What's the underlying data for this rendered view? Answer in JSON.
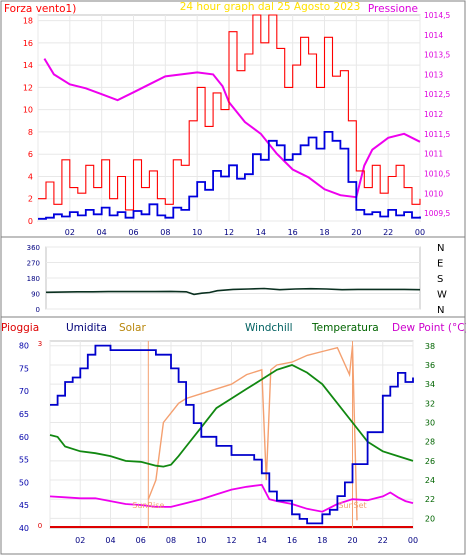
{
  "chart_data": [
    {
      "type": "line",
      "title": "24 hour graph dal   25 Agosto 2023",
      "ylabel_left": "Forza vento1)",
      "ylabel_right": "Pressione",
      "x_ticks": [
        "02",
        "04",
        "06",
        "08",
        "10",
        "12",
        "14",
        "16",
        "18",
        "20",
        "22",
        "00"
      ],
      "y_ticks_left": [
        "0",
        "2",
        "4",
        "6",
        "8",
        "10",
        "12",
        "14",
        "16",
        "18"
      ],
      "y_ticks_right": [
        "1009,5",
        "1010",
        "1010,5",
        "1011",
        "1011,5",
        "1012",
        "1012,5",
        "1013",
        "1013,5",
        "1014",
        "1014,5"
      ],
      "ylim_left": [
        0,
        18.5
      ],
      "ylim_right": [
        1009.3,
        1014.5
      ],
      "grid": true,
      "colors": {
        "gust": "#ff0000",
        "wind": "#0000dd",
        "pressure": "#ee00ee"
      },
      "series": [
        {
          "key": "pressure",
          "axis": "right",
          "x": [
            0.4,
            1,
            2,
            3,
            4,
            5,
            6,
            7,
            8,
            9,
            10,
            11,
            11.6,
            12,
            13,
            14,
            15,
            16,
            17,
            18,
            19,
            20,
            20.5,
            21,
            22,
            23,
            24
          ],
          "values": [
            1013.4,
            1013.0,
            1012.75,
            1012.65,
            1012.5,
            1012.35,
            1012.55,
            1012.75,
            1012.95,
            1013.0,
            1013.05,
            1013.0,
            1012.7,
            1012.3,
            1011.8,
            1011.5,
            1011.0,
            1010.6,
            1010.4,
            1010.1,
            1009.95,
            1009.9,
            1010.7,
            1011.1,
            1011.4,
            1011.5,
            1011.3
          ]
        },
        {
          "key": "wind",
          "axis": "left",
          "x": [
            0,
            0.5,
            1,
            1.5,
            2,
            2.5,
            3,
            3.5,
            4,
            4.5,
            5,
            5.5,
            6,
            6.5,
            7,
            7.5,
            8,
            8.5,
            9,
            9.5,
            10,
            10.5,
            11,
            11.5,
            12,
            12.5,
            13,
            13.5,
            14,
            14.5,
            15,
            15.5,
            16,
            16.5,
            17,
            17.5,
            18,
            18.5,
            19,
            19.5,
            20,
            20.5,
            21,
            21.5,
            22,
            22.5,
            23,
            23.5,
            24
          ],
          "values": [
            0.2,
            0.3,
            0.6,
            0.4,
            0.8,
            0.5,
            1.0,
            0.6,
            1.2,
            0.5,
            0.8,
            0.3,
            0.9,
            0.6,
            1.5,
            0.5,
            0.3,
            1.2,
            1.0,
            2.2,
            3.5,
            2.8,
            4.5,
            4.0,
            5.0,
            3.8,
            4.2,
            6.0,
            5.5,
            7.2,
            6.8,
            5.5,
            6.0,
            6.8,
            7.5,
            6.5,
            8.0,
            7.2,
            6.5,
            3.5,
            1.0,
            0.6,
            0.8,
            0.4,
            1.0,
            0.5,
            0.8,
            0.3,
            0.4
          ]
        },
        {
          "key": "gust",
          "axis": "left",
          "x": [
            0,
            0.5,
            1,
            1.5,
            2,
            2.5,
            3,
            3.5,
            4,
            4.5,
            5,
            5.5,
            6,
            6.5,
            7,
            7.5,
            8,
            8.5,
            9,
            9.5,
            10,
            10.5,
            11,
            11.5,
            12,
            12.5,
            13,
            13.5,
            14,
            14.5,
            15,
            15.5,
            16,
            16.5,
            17,
            17.5,
            18,
            18.5,
            19,
            19.5,
            20,
            20.5,
            21,
            21.5,
            22,
            22.5,
            23,
            23.5,
            24
          ],
          "values": [
            2.0,
            3.5,
            1.5,
            5.5,
            3.0,
            2.5,
            5.0,
            3.0,
            5.5,
            2.0,
            4.0,
            1.0,
            5.5,
            3.0,
            4.5,
            2.0,
            1.5,
            5.5,
            5.0,
            9.0,
            12.0,
            8.5,
            11.5,
            10.0,
            17.0,
            13.5,
            15.0,
            18.5,
            16.0,
            18.5,
            15.5,
            12.0,
            14.0,
            16.5,
            15.0,
            12.0,
            16.5,
            13.0,
            13.5,
            9.0,
            4.5,
            3.0,
            5.0,
            2.5,
            4.0,
            5.0,
            3.0,
            1.5,
            2.0
          ]
        }
      ]
    },
    {
      "type": "line",
      "title": "",
      "x_ticks": [
        "02",
        "04",
        "06",
        "08",
        "10",
        "12",
        "14",
        "16",
        "18",
        "20",
        "22",
        "00"
      ],
      "y_ticks_left": [
        "0",
        "90",
        "180",
        "270",
        "360"
      ],
      "ylim": [
        0,
        360
      ],
      "direction_labels": [
        "N",
        "W",
        "S",
        "E",
        "N"
      ],
      "grid": true,
      "colors": {
        "direction": "#0a3020"
      },
      "series": [
        {
          "key": "direction",
          "x": [
            0,
            1,
            2,
            3,
            4,
            5,
            6,
            7,
            8,
            9,
            9.5,
            10,
            10.5,
            11,
            12,
            13,
            14,
            15,
            16,
            17,
            18,
            19,
            20,
            21,
            22,
            23,
            24
          ],
          "values": [
            97,
            98,
            100,
            100,
            101,
            101,
            101,
            101,
            102,
            100,
            85,
            92,
            96,
            106,
            114,
            116,
            119,
            112,
            116,
            118,
            116,
            112,
            114,
            114,
            114,
            114,
            112
          ]
        }
      ]
    },
    {
      "type": "line",
      "title": "",
      "legend": [
        "Pioggia",
        "Umidita",
        "Solar",
        "Windchill",
        "Temperatura",
        "Dew Point (°C)"
      ],
      "legend_colors": [
        "#dd0000",
        "#000077",
        "#b8860b",
        "#006060",
        "#006400",
        "#cc00cc"
      ],
      "x_ticks": [
        "02",
        "04",
        "06",
        "08",
        "10",
        "12",
        "14",
        "16",
        "18",
        "20",
        "22",
        "00"
      ],
      "y_ticks_left": [
        "40",
        "45",
        "50",
        "55",
        "60",
        "65",
        "70",
        "75",
        "80"
      ],
      "y_ticks_right": [
        "20",
        "22",
        "24",
        "26",
        "28",
        "30",
        "32",
        "34",
        "36",
        "38"
      ],
      "rain_axis_ticks": [
        "3",
        "0"
      ],
      "ylim_left": [
        40,
        81
      ],
      "ylim_right": [
        19,
        38.5
      ],
      "annotations": [
        "SunRise",
        "SunSet"
      ],
      "annotation_x": [
        6.5,
        20
      ],
      "grid": true,
      "colors": {
        "humidity": "#0000cc",
        "solar": "#f4a070",
        "temperature": "#118811",
        "dewpoint": "#ee00ee",
        "rain": "#dd0000"
      },
      "series": [
        {
          "key": "humidity",
          "axis": "left",
          "x": [
            0,
            0.5,
            1,
            1.5,
            2,
            2.5,
            3,
            3.5,
            4,
            5,
            6,
            7,
            7.5,
            8,
            8.5,
            9,
            9.5,
            10,
            11,
            12,
            13,
            13.5,
            14,
            14.5,
            15,
            16,
            16.5,
            17,
            18,
            18.5,
            19,
            19.5,
            20,
            21,
            22,
            22.5,
            23,
            23.5,
            24
          ],
          "values": [
            67,
            69,
            72,
            73,
            75,
            78,
            80,
            80,
            79,
            79,
            79,
            78,
            78,
            75,
            72,
            67,
            63,
            60,
            58,
            56,
            56,
            55,
            52,
            48,
            46,
            43,
            42,
            41,
            43,
            44,
            47,
            50,
            54,
            61,
            69,
            71,
            74,
            72,
            73
          ]
        },
        {
          "key": "solar",
          "axis": "right",
          "x": [
            6.5,
            7,
            7.5,
            8,
            8.5,
            9,
            10,
            11,
            12,
            13,
            14,
            14.3,
            14.6,
            15,
            16,
            17,
            18,
            19,
            19.8,
            20,
            20.3
          ],
          "values": [
            22,
            24,
            30,
            31,
            32,
            32.5,
            33,
            33.5,
            34,
            35,
            35.5,
            24,
            35.5,
            36,
            36.3,
            37,
            37.4,
            37.8,
            35,
            38,
            19.8
          ]
        },
        {
          "key": "temperature",
          "axis": "right",
          "x": [
            0,
            0.5,
            1,
            2,
            3,
            4,
            5,
            6,
            7,
            7.5,
            8,
            8.5,
            9,
            10,
            11,
            12,
            13,
            14,
            15,
            16,
            17,
            18,
            19,
            20,
            21,
            22,
            23,
            24
          ],
          "values": [
            28.7,
            28.5,
            27.5,
            27,
            26.8,
            26.5,
            26,
            25.9,
            25.5,
            25.4,
            25.6,
            26.5,
            27.5,
            29.5,
            31.5,
            32.5,
            33.5,
            34.5,
            35.5,
            36,
            35.2,
            34,
            32,
            30,
            28,
            27,
            26.5,
            26
          ]
        },
        {
          "key": "dewpoint",
          "axis": "right",
          "x": [
            0,
            1,
            2,
            3,
            4,
            5,
            6,
            7,
            8,
            9,
            10,
            11,
            12,
            13,
            14,
            14.5,
            15,
            16,
            17,
            18,
            19,
            20,
            21,
            22,
            22.5,
            23,
            23.5,
            24
          ],
          "values": [
            22.3,
            22.2,
            22.1,
            22.1,
            21.8,
            21.5,
            21.4,
            21.2,
            21.2,
            21.6,
            22.0,
            22.5,
            23.0,
            23.3,
            23.5,
            22,
            21.8,
            21.5,
            21.0,
            20.7,
            21.5,
            22,
            21.9,
            22.3,
            22.7,
            22.2,
            21.8,
            21.6
          ]
        }
      ]
    }
  ]
}
